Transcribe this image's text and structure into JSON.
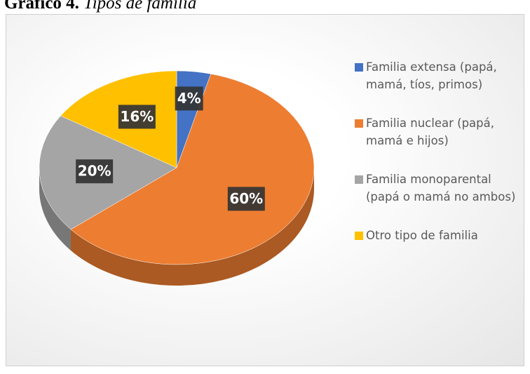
{
  "caption": {
    "number": "Gráfico 4.",
    "title": "Tipos de familia"
  },
  "chart_data": {
    "type": "pie",
    "categories": [
      "Familia extensa (papá, mamá, tíos, primos)",
      "Familia nuclear (papá, mamá e hijos)",
      "Familia monoparental (papá o mamá no ambos)",
      "Otro tipo de familia"
    ],
    "values": [
      4,
      60,
      20,
      16
    ],
    "value_labels": [
      "4%",
      "60%",
      "20%",
      "16%"
    ],
    "colors": [
      "#4472c4",
      "#ed7d31",
      "#a5a5a5",
      "#ffc000"
    ],
    "legend": "right"
  }
}
